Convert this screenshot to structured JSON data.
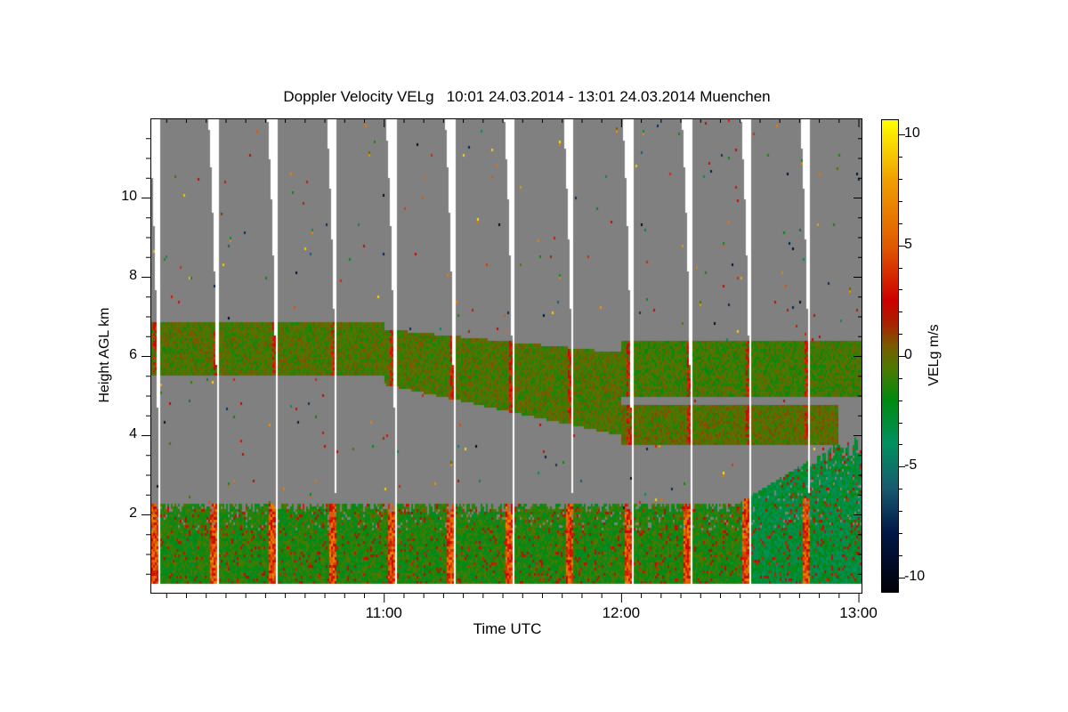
{
  "chart_data": {
    "type": "heatmap",
    "title": "Doppler Velocity VELg   10:01 24.03.2014 - 13:01 24.03.2014 Muenchen",
    "xlabel": "Time UTC",
    "ylabel": "Height AGL km",
    "colorbar_label": "VELg m/s",
    "xlim_minutes_after_10": [
      1,
      181
    ],
    "ylim": [
      0,
      12
    ],
    "clim": [
      -10.7,
      10.7
    ],
    "x_ticks": [
      {
        "label": "11:00",
        "minutes": 60
      },
      {
        "label": "12:00",
        "minutes": 120
      },
      {
        "label": "13:00",
        "minutes": 180
      }
    ],
    "y_ticks": [
      {
        "label": "2",
        "value": 2
      },
      {
        "label": "4",
        "value": 4
      },
      {
        "label": "6",
        "value": 6
      },
      {
        "label": "8",
        "value": 8
      },
      {
        "label": "10",
        "value": 10
      }
    ],
    "colorbar_ticks": [
      {
        "label": "10",
        "value": 10
      },
      {
        "label": "5",
        "value": 5
      },
      {
        "label": "0",
        "value": 0
      },
      {
        "label": "-5",
        "value": -5
      },
      {
        "label": "-10",
        "value": -10
      }
    ],
    "colormap": [
      {
        "v": -10.7,
        "c": "#000008"
      },
      {
        "v": -8,
        "c": "#001848"
      },
      {
        "v": -6,
        "c": "#1a5a70"
      },
      {
        "v": -4,
        "c": "#009060"
      },
      {
        "v": -2,
        "c": "#008a10"
      },
      {
        "v": -0.5,
        "c": "#507800"
      },
      {
        "v": 0.5,
        "c": "#7a5a00"
      },
      {
        "v": 1.5,
        "c": "#aa2000"
      },
      {
        "v": 2.5,
        "c": "#cc0000"
      },
      {
        "v": 5,
        "c": "#e05a00"
      },
      {
        "v": 8,
        "c": "#f0a000"
      },
      {
        "v": 10.7,
        "c": "#ffff00"
      }
    ],
    "missing_color": "#808080",
    "scan_gap_minutes": [
      3,
      18,
      33,
      48,
      63,
      78,
      93,
      108,
      123,
      138,
      153,
      168
    ],
    "features": [
      {
        "name": "boundary layer",
        "start": 1,
        "end": 150,
        "base_km": 0.25,
        "top_km": 2.3,
        "mean_velocity": -1.5
      },
      {
        "name": "boundary layer deepening",
        "start": 150,
        "end": 181,
        "base_km": 0.25,
        "top_km": 3.0,
        "mean_velocity": -3
      },
      {
        "name": "mid-level cloud",
        "start": 1,
        "end": 60,
        "base_km": 5.5,
        "top_km": 6.9,
        "mean_velocity": -0.5
      },
      {
        "name": "mid-level cloud descending",
        "start": 60,
        "end": 120,
        "base_km": 4.0,
        "top_km": 6.4,
        "mean_velocity": -0.5
      },
      {
        "name": "lower cloud layer",
        "start": 120,
        "end": 175,
        "base_km": 3.8,
        "top_km": 4.8,
        "mean_velocity": -0.3
      },
      {
        "name": "upper cloud layer",
        "start": 120,
        "end": 181,
        "base_km": 5.0,
        "top_km": 6.4,
        "mean_velocity": -0.8
      }
    ]
  }
}
